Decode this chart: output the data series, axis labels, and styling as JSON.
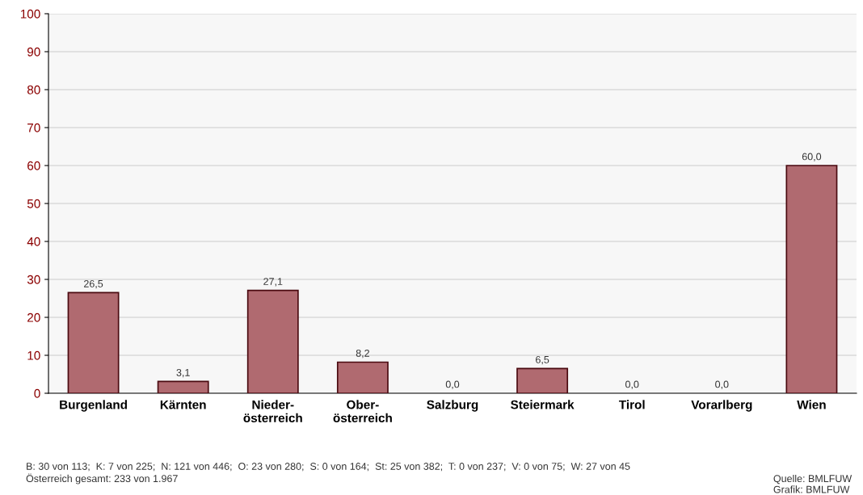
{
  "chart_data": {
    "type": "bar",
    "categories": [
      "Burgenland",
      "Kärnten",
      "Nieder-\nösterreich",
      "Ober-\nösterreich",
      "Salzburg",
      "Steiermark",
      "Tirol",
      "Vorarlberg",
      "Wien"
    ],
    "values": [
      26.5,
      3.1,
      27.1,
      8.2,
      0.0,
      6.5,
      0.0,
      0.0,
      60.0
    ],
    "value_labels": [
      "26,5",
      "3,1",
      "27,1",
      "8,2",
      "0,0",
      "6,5",
      "0,0",
      "0,0",
      "60,0"
    ],
    "color": "#b06a70",
    "ylim": [
      0,
      100
    ],
    "yticks": [
      0,
      10,
      20,
      30,
      40,
      50,
      60,
      70,
      80,
      90,
      100
    ],
    "grid": "y",
    "legend": false,
    "annotations": [
      "B: 30 von 113;  K: 7 von 225;  N: 121 von 446;  O: 23 von 280;  S: 0 von 164;  St: 25 von 382;  T: 0 von 237;  V: 0 von 75;  W: 27 von 45\nÖsterreich gesamt: 233 von 1.967",
      "Quelle: BMLFUW\nGrafik: BMLFUW"
    ]
  }
}
